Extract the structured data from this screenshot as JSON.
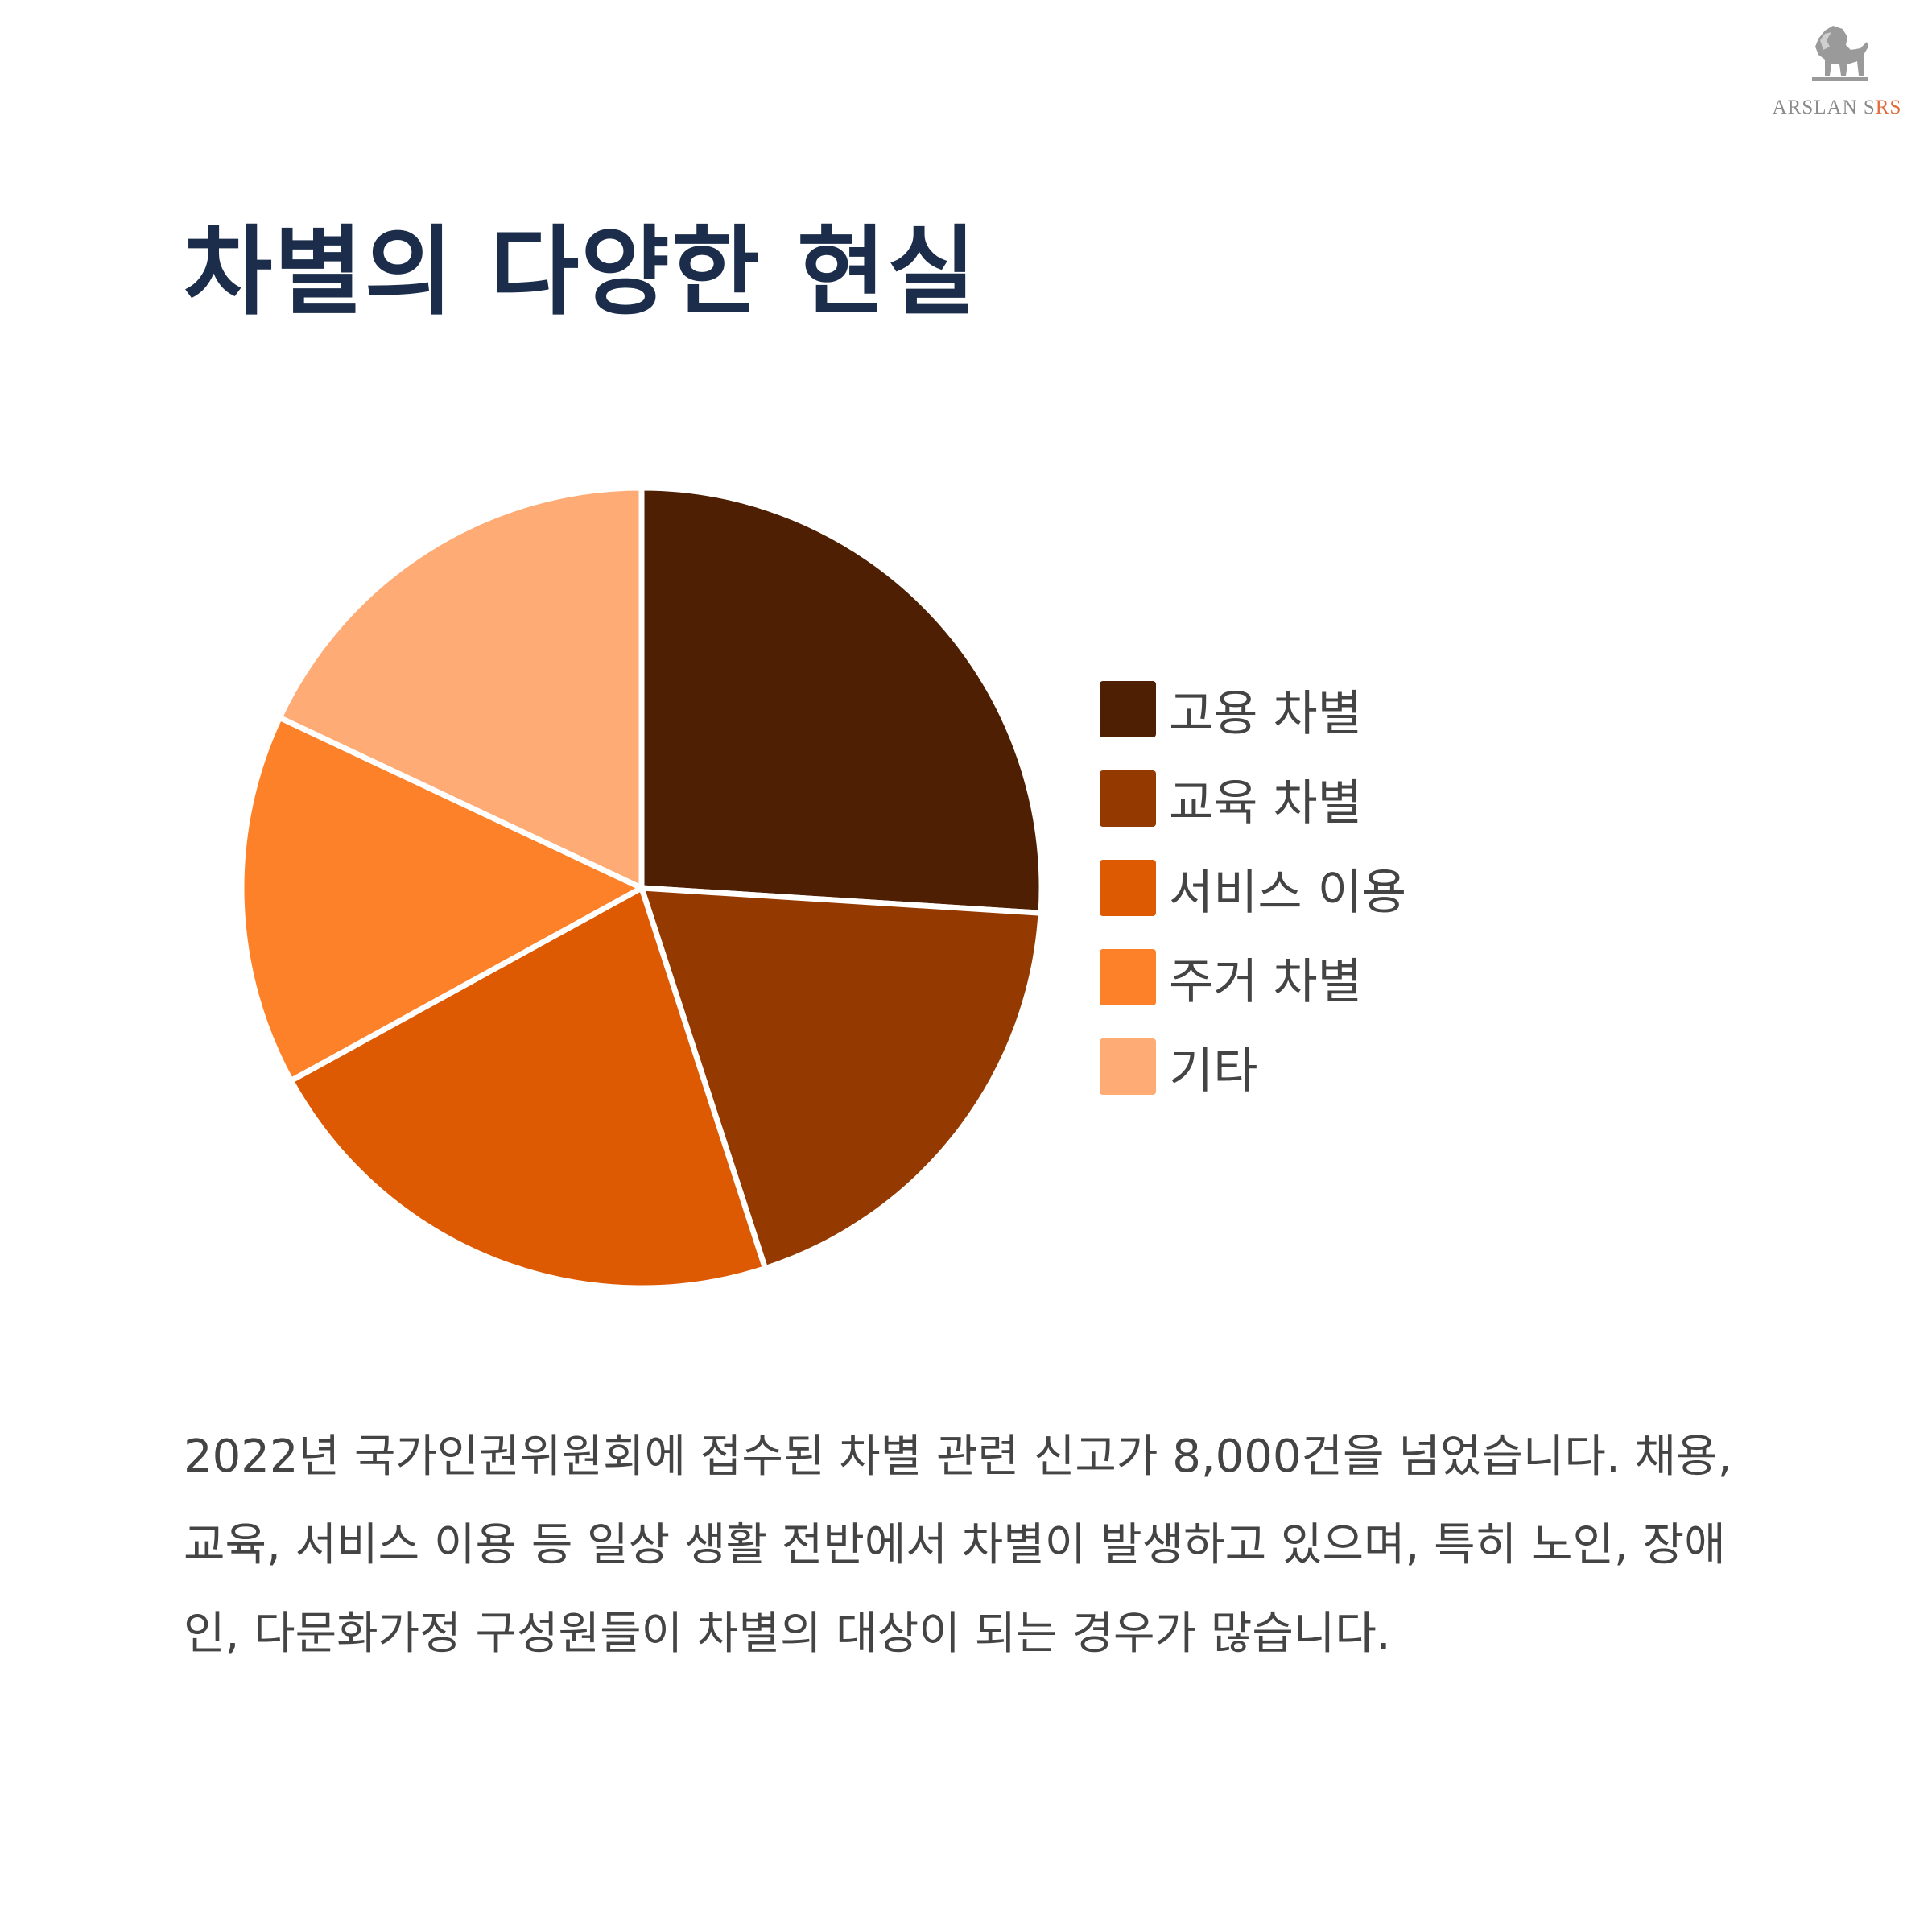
{
  "brand": {
    "logo_text": "ARSLAN S",
    "logo_accent": "RS",
    "logo_icon": "lion-icon"
  },
  "title": "차별의 다양한 현실",
  "chart_data": {
    "type": "pie",
    "title": "",
    "categories": [
      "고용 차별",
      "교육 차별",
      "서비스 이용",
      "주거 차별",
      "기타"
    ],
    "values": [
      26,
      19,
      22,
      15,
      18
    ],
    "colors": [
      "#4e1f02",
      "#943a00",
      "#dd5a03",
      "#fd8129",
      "#ffab75"
    ],
    "legend_placement": "right",
    "start_angle": "12 o'clock",
    "direction": "clockwise"
  },
  "description": "2022년 국가인권위원회에 접수된 차별 관련 신고가 8,000건을 넘었습니다. 채용, 교육, 서비스 이용 등 일상 생활 전반에서 차별이 발생하고 있으며, 특히 노인, 장애인, 다문화가정 구성원들이 차별의 대상이 되는 경우가 많습니다."
}
